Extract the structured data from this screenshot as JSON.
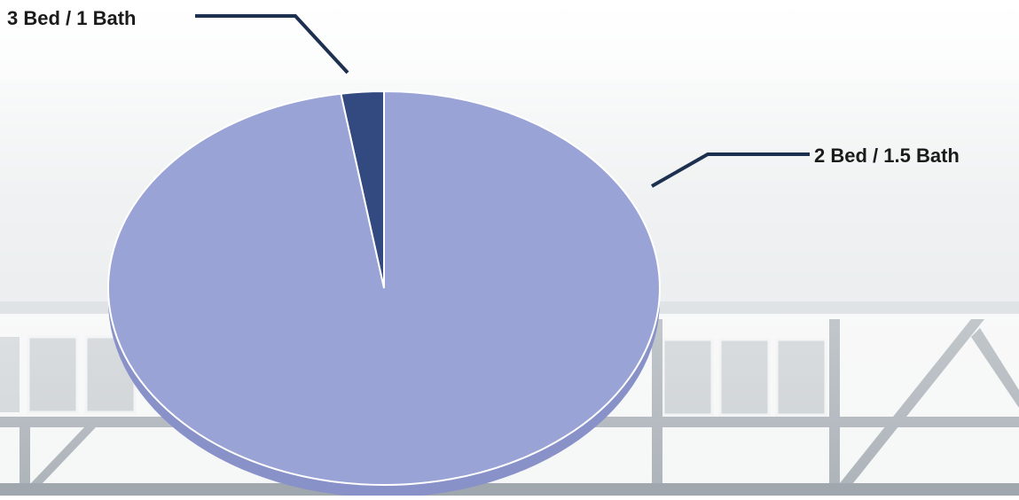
{
  "chart_data": {
    "type": "pie",
    "title": "",
    "categories": [
      "3 Bed / 1 Bath",
      "2 Bed / 1.5 Bath"
    ],
    "values": [
      2.5,
      97.5
    ],
    "colors": [
      "#334a80",
      "#9aa3d6"
    ],
    "legend": "none",
    "style": "3d-tilted"
  },
  "colors": {
    "leader_line": "#1e3050",
    "slice_edge": "#ffffff",
    "pie_depth": "#8891c8"
  }
}
